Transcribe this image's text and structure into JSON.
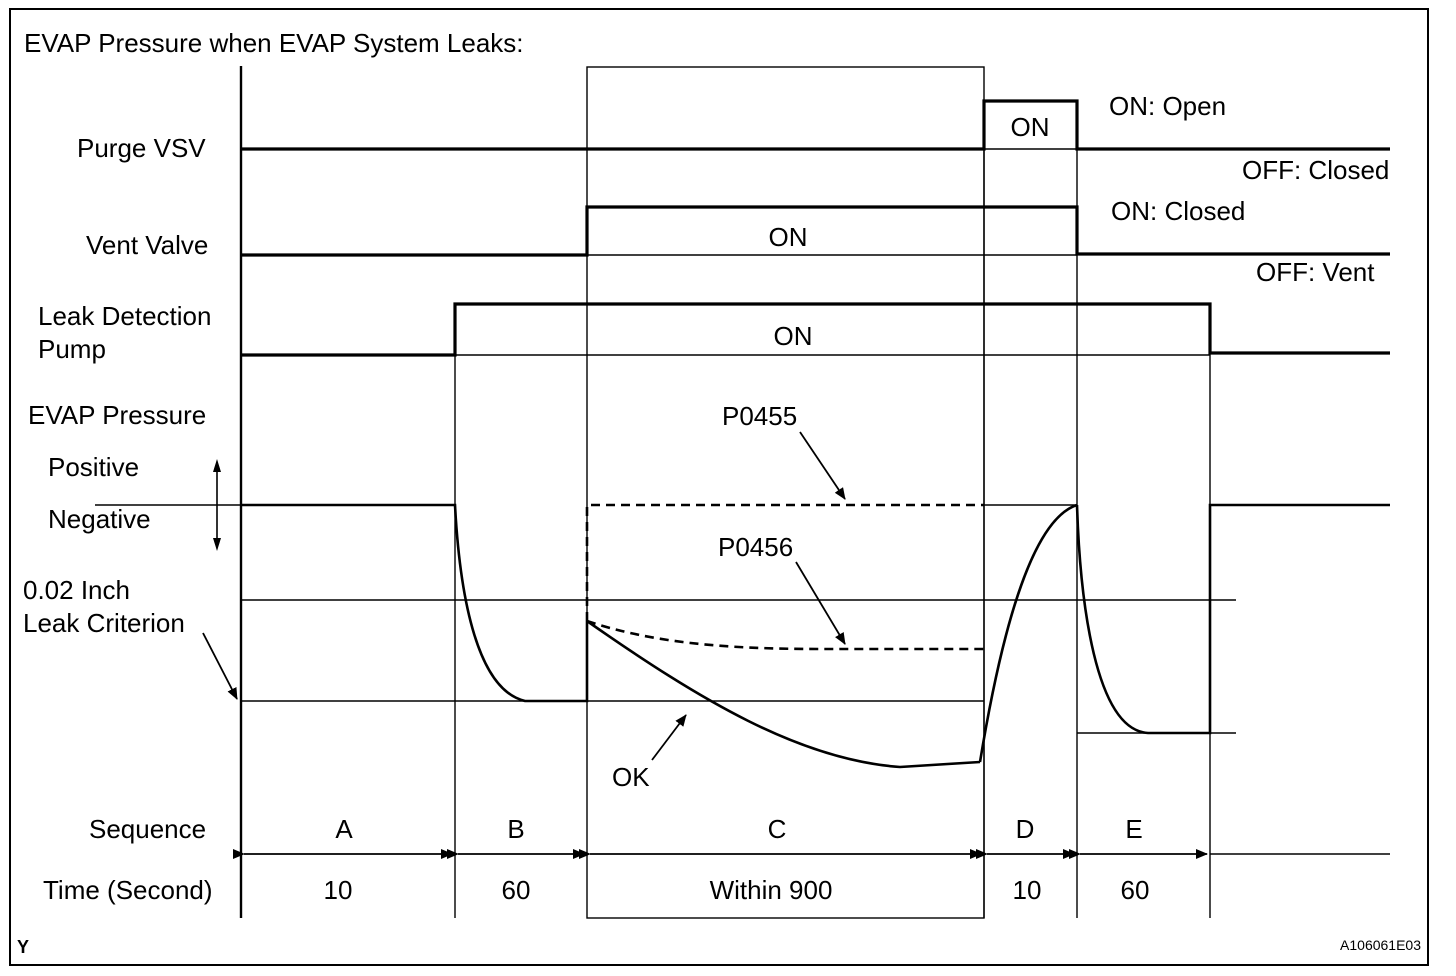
{
  "title": "EVAP Pressure when EVAP System Leaks:",
  "rows": {
    "purge_vsv": "Purge VSV",
    "vent_valve": "Vent Valve",
    "leak_pump_line1": "Leak Detection",
    "leak_pump_line2": "Pump",
    "evap_pressure": "EVAP Pressure",
    "positive": "Positive",
    "negative": "Negative",
    "criterion_line1": "0.02 Inch",
    "criterion_line2": "Leak Criterion"
  },
  "states": {
    "purge_on": "ON",
    "purge_on_desc": "ON: Open",
    "purge_off_desc": "OFF: Closed",
    "vent_on": "ON",
    "vent_on_desc": "ON: Closed",
    "vent_off_desc": "OFF: Vent",
    "pump_on": "ON"
  },
  "annotations": {
    "p0455": "P0455",
    "p0456": "P0456",
    "ok": "OK"
  },
  "sequence": {
    "label": "Sequence",
    "time_label": "Time (Second)",
    "steps": [
      {
        "name": "A",
        "time": "10"
      },
      {
        "name": "B",
        "time": "60"
      },
      {
        "name": "C",
        "time": "Within 900"
      },
      {
        "name": "D",
        "time": "10"
      },
      {
        "name": "E",
        "time": "60"
      }
    ]
  },
  "footer": {
    "left": "Y",
    "right": "A106061E03"
  }
}
